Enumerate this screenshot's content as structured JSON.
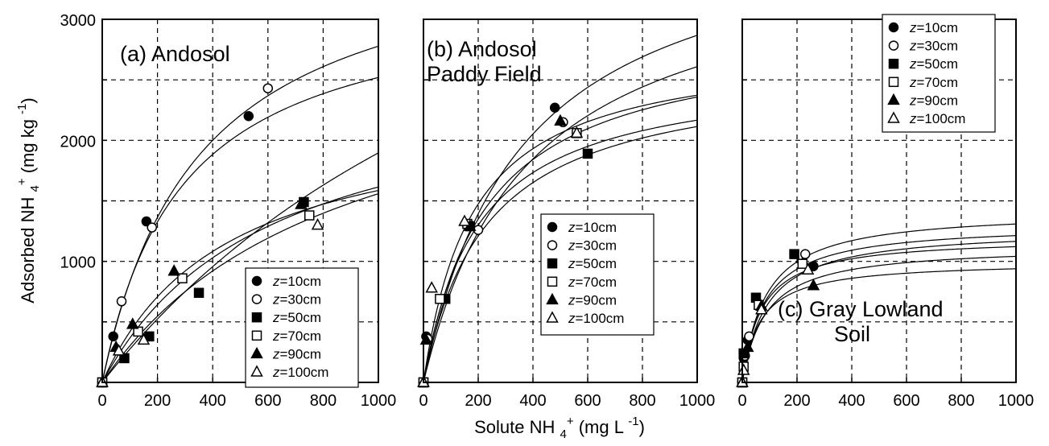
{
  "chart_data": [
    {
      "type": "scatter",
      "title": "(a) Andosol",
      "title_lines": [
        "(a) Andosol"
      ],
      "xlim": [
        0,
        1000
      ],
      "ylim": [
        0,
        3000
      ],
      "xticks": [
        0,
        200,
        400,
        600,
        800,
        1000
      ],
      "yticks": [
        1000,
        2000,
        3000
      ],
      "legend": "bottom-right",
      "grid": true,
      "series": [
        {
          "name": "z=10cm",
          "marker": "filled-circle",
          "x": [
            0,
            40,
            160,
            530
          ],
          "y": [
            0,
            380,
            1330,
            2200
          ],
          "fit": [
            3250,
            290
          ]
        },
        {
          "name": "z=30cm",
          "marker": "open-circle",
          "x": [
            0,
            70,
            180,
            600
          ],
          "y": [
            0,
            670,
            1280,
            2430
          ],
          "fit": [
            3750,
            350
          ]
        },
        {
          "name": "z=50cm",
          "marker": "filled-square",
          "x": [
            0,
            80,
            170,
            350,
            730
          ],
          "y": [
            0,
            200,
            380,
            740,
            1490
          ],
          "fit": [
            5500,
            1900
          ]
        },
        {
          "name": "z=70cm",
          "marker": "open-square",
          "x": [
            0,
            130,
            290,
            750
          ],
          "y": [
            0,
            420,
            860,
            1380
          ],
          "fit": [
            2600,
            610
          ]
        },
        {
          "name": "z=90cm",
          "marker": "filled-triangle",
          "x": [
            0,
            50,
            110,
            260,
            720
          ],
          "y": [
            0,
            290,
            480,
            920,
            1470
          ],
          "fit": [
            2300,
            450
          ]
        },
        {
          "name": "z=100cm",
          "marker": "open-triangle",
          "x": [
            0,
            60,
            150,
            780
          ],
          "y": [
            0,
            260,
            350,
            1300
          ],
          "fit": [
            2900,
            860
          ]
        }
      ]
    },
    {
      "type": "scatter",
      "title": "(b) Andosol Paddy Field",
      "title_lines": [
        "(b) Andosol",
        "Paddy Field"
      ],
      "xlim": [
        0,
        1000
      ],
      "ylim": [
        0,
        3000
      ],
      "xticks": [
        0,
        200,
        400,
        600,
        800,
        1000
      ],
      "yticks": [
        1000,
        2000,
        3000
      ],
      "legend": "bottom-right",
      "grid": true,
      "series": [
        {
          "name": "z=10cm",
          "marker": "filled-circle",
          "x": [
            0,
            10,
            170,
            480
          ],
          "y": [
            0,
            380,
            1300,
            2270
          ],
          "fit": [
            3900,
            360
          ]
        },
        {
          "name": "z=30cm",
          "marker": "open-circle",
          "x": [
            0,
            15,
            200,
            510
          ],
          "y": [
            0,
            360,
            1260,
            2150
          ],
          "fit": [
            3600,
            380
          ]
        },
        {
          "name": "z=50cm",
          "marker": "filled-square",
          "x": [
            0,
            80,
            170,
            600
          ],
          "y": [
            0,
            690,
            1290,
            1890
          ],
          "fit": [
            2600,
            230
          ]
        },
        {
          "name": "z=70cm",
          "marker": "open-square",
          "x": [
            0,
            60,
            160,
            560
          ],
          "y": [
            0,
            690,
            1310,
            2060
          ],
          "fit": [
            2600,
            200
          ]
        },
        {
          "name": "z=90cm",
          "marker": "filled-triangle",
          "x": [
            0,
            10,
            170,
            500
          ],
          "y": [
            0,
            350,
            1290,
            2160
          ],
          "fit": [
            2900,
            230
          ]
        },
        {
          "name": "z=100cm",
          "marker": "open-triangle",
          "x": [
            0,
            30,
            150,
            560
          ],
          "y": [
            0,
            780,
            1330,
            2060
          ],
          "fit": [
            2800,
            180
          ]
        }
      ]
    },
    {
      "type": "scatter",
      "title": "(c) Gray Lowland Soil",
      "title_lines": [
        "(c) Gray Lowland",
        "Soil"
      ],
      "xlim": [
        0,
        1000
      ],
      "ylim": [
        0,
        3000
      ],
      "xticks": [
        0,
        200,
        400,
        600,
        800,
        1000
      ],
      "yticks": [
        1000,
        2000,
        3000
      ],
      "legend": "top-right",
      "grid": true,
      "series": [
        {
          "name": "z=10cm",
          "marker": "filled-circle",
          "x": [
            0,
            5,
            20,
            260
          ],
          "y": [
            0,
            200,
            350,
            960
          ],
          "fit": [
            1200,
            70
          ]
        },
        {
          "name": "z=30cm",
          "marker": "open-circle",
          "x": [
            0,
            10,
            25,
            230
          ],
          "y": [
            0,
            220,
            380,
            1060
          ],
          "fit": [
            1310,
            80
          ]
        },
        {
          "name": "z=50cm",
          "marker": "filled-square",
          "x": [
            0,
            5,
            50,
            190
          ],
          "y": [
            0,
            240,
            700,
            1060
          ],
          "fit": [
            1420,
            85
          ]
        },
        {
          "name": "z=70cm",
          "marker": "open-square",
          "x": [
            0,
            5,
            60,
            220
          ],
          "y": [
            0,
            130,
            640,
            980
          ],
          "fit": [
            1270,
            90
          ]
        },
        {
          "name": "z=90cm",
          "marker": "filled-triangle",
          "x": [
            0,
            20,
            70,
            260
          ],
          "y": [
            0,
            290,
            630,
            800
          ],
          "fit": [
            1000,
            65
          ]
        },
        {
          "name": "z=100cm",
          "marker": "open-triangle",
          "x": [
            0,
            5,
            70,
            240
          ],
          "y": [
            0,
            100,
            600,
            930
          ],
          "fit": [
            1130,
            85
          ]
        }
      ]
    }
  ],
  "axes": {
    "ylabel": "Adsorbed NH 4 + (mg kg -1)",
    "xlabel": "Solute NH 4 + (mg L -1)"
  }
}
